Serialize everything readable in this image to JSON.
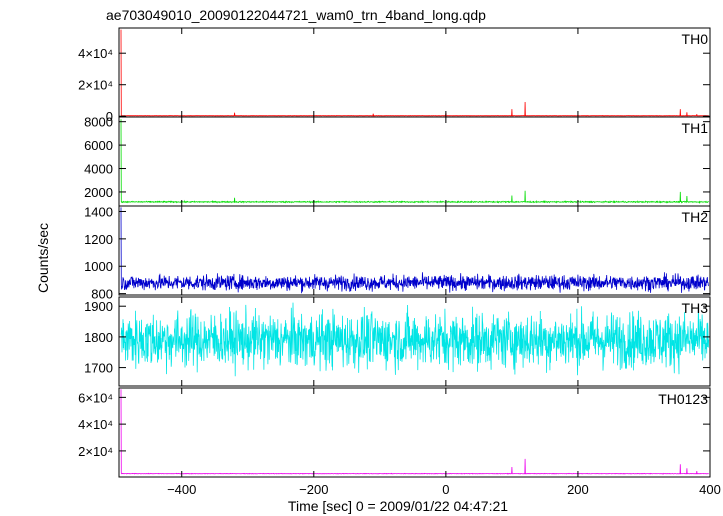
{
  "chart_data": {
    "type": "line",
    "title": "ae703049010_20090122044721_wam0_trn_4band_long.qdp",
    "xlabel": "Time [sec] 0 = 2009/01/22 04:47:21",
    "ylabel": "Counts/sec",
    "xlim": [
      -495,
      400
    ],
    "x_ticks": [
      {
        "value": -400,
        "label": "−400"
      },
      {
        "value": -200,
        "label": "−200"
      },
      {
        "value": 0,
        "label": "0"
      },
      {
        "value": 200,
        "label": "200"
      },
      {
        "value": 400,
        "label": "400"
      }
    ],
    "panels": [
      {
        "name": "TH0",
        "color": "#ff0000",
        "ylim": [
          -500,
          56000
        ],
        "baseline": 300,
        "noise": 60,
        "y_ticks": [
          {
            "value": 0,
            "label": "0"
          },
          {
            "value": 20000,
            "label": "2×10⁴"
          },
          {
            "value": 40000,
            "label": "4×10⁴"
          }
        ],
        "spikes": [
          [
            -492,
            55000
          ],
          [
            -320,
            2200
          ],
          [
            -110,
            1600
          ],
          [
            0,
            2000
          ],
          [
            100,
            4500
          ],
          [
            120,
            9000
          ],
          [
            355,
            4500
          ],
          [
            365,
            2500
          ],
          [
            380,
            1300
          ]
        ]
      },
      {
        "name": "TH1",
        "color": "#00dd00",
        "ylim": [
          800,
          8400
        ],
        "baseline": 1150,
        "noise": 35,
        "y_ticks": [
          {
            "value": 2000,
            "label": "2000"
          },
          {
            "value": 4000,
            "label": "4000"
          },
          {
            "value": 6000,
            "label": "6000"
          },
          {
            "value": 8000,
            "label": "8000"
          }
        ],
        "spikes": [
          [
            -492,
            8200
          ],
          [
            -320,
            1500
          ],
          [
            100,
            1700
          ],
          [
            120,
            2100
          ],
          [
            355,
            2000
          ],
          [
            365,
            1650
          ]
        ]
      },
      {
        "name": "TH2",
        "color": "#0000cc",
        "ylim": [
          790,
          1440
        ],
        "baseline": 880,
        "noise": 40,
        "y_ticks": [
          {
            "value": 800,
            "label": "800"
          },
          {
            "value": 1000,
            "label": "1000"
          },
          {
            "value": 1200,
            "label": "1200"
          },
          {
            "value": 1400,
            "label": "1400"
          }
        ],
        "spikes": [
          [
            -492,
            1430
          ]
        ]
      },
      {
        "name": "TH3",
        "color": "#00e5e5",
        "ylim": [
          1640,
          1930
        ],
        "baseline": 1790,
        "noise": 65,
        "y_ticks": [
          {
            "value": 1700,
            "label": "1700"
          },
          {
            "value": 1800,
            "label": "1800"
          },
          {
            "value": 1900,
            "label": "1900"
          }
        ],
        "spikes": []
      },
      {
        "name": "TH0123",
        "color": "#ee00ee",
        "ylim": [
          500,
          67000
        ],
        "baseline": 3000,
        "noise": 120,
        "y_ticks": [
          {
            "value": 20000,
            "label": "2×10⁴"
          },
          {
            "value": 40000,
            "label": "4×10⁴"
          },
          {
            "value": 60000,
            "label": "6×10⁴"
          }
        ],
        "spikes": [
          [
            -492,
            66000
          ],
          [
            100,
            8000
          ],
          [
            120,
            14000
          ],
          [
            355,
            10000
          ],
          [
            365,
            7000
          ],
          [
            380,
            5000
          ]
        ]
      }
    ]
  }
}
